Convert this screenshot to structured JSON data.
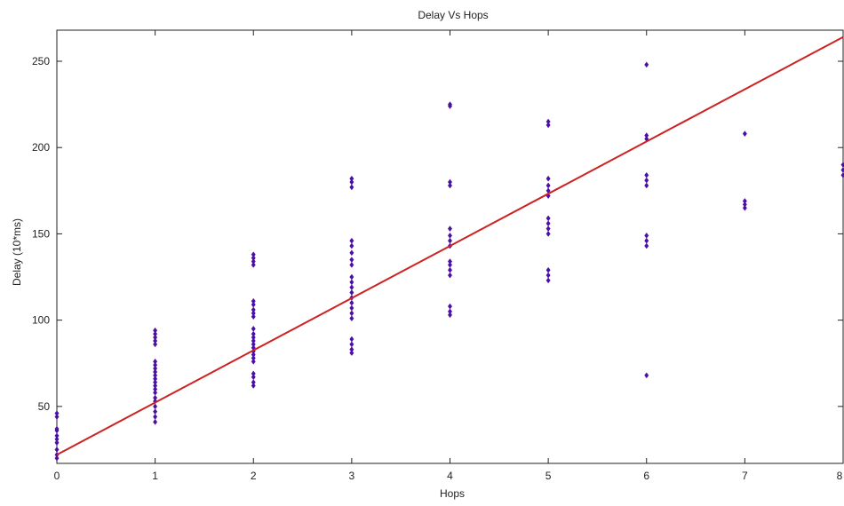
{
  "chart_data": {
    "type": "scatter",
    "title": "Delay Vs Hops",
    "xlabel": "Hops",
    "ylabel": "Delay  (10*ms)",
    "xlim": [
      0,
      8
    ],
    "ylim": [
      17,
      268
    ],
    "xticks": [
      0,
      1,
      2,
      3,
      4,
      5,
      6,
      7,
      8
    ],
    "yticks": [
      50,
      100,
      150,
      200,
      250
    ],
    "grid": false,
    "colors": {
      "points": "#4b0fa8",
      "fit": "#cc2222",
      "axes": "#222222"
    },
    "series": [
      {
        "type": "scatter",
        "points": [
          [
            0,
            20
          ],
          [
            0,
            22
          ],
          [
            0,
            25
          ],
          [
            0,
            29
          ],
          [
            0,
            31
          ],
          [
            0,
            33
          ],
          [
            0,
            36
          ],
          [
            0,
            37
          ],
          [
            0,
            44
          ],
          [
            0,
            46
          ],
          [
            1,
            41
          ],
          [
            1,
            44
          ],
          [
            1,
            47
          ],
          [
            1,
            50
          ],
          [
            1,
            53
          ],
          [
            1,
            55
          ],
          [
            1,
            58
          ],
          [
            1,
            60
          ],
          [
            1,
            62
          ],
          [
            1,
            64
          ],
          [
            1,
            66
          ],
          [
            1,
            68
          ],
          [
            1,
            70
          ],
          [
            1,
            72
          ],
          [
            1,
            74
          ],
          [
            1,
            76
          ],
          [
            1,
            86
          ],
          [
            1,
            88
          ],
          [
            1,
            90
          ],
          [
            1,
            92
          ],
          [
            1,
            94
          ],
          [
            2,
            62
          ],
          [
            2,
            64
          ],
          [
            2,
            67
          ],
          [
            2,
            69
          ],
          [
            2,
            76
          ],
          [
            2,
            78
          ],
          [
            2,
            80
          ],
          [
            2,
            82
          ],
          [
            2,
            84
          ],
          [
            2,
            86
          ],
          [
            2,
            88
          ],
          [
            2,
            90
          ],
          [
            2,
            92
          ],
          [
            2,
            95
          ],
          [
            2,
            102
          ],
          [
            2,
            104
          ],
          [
            2,
            106
          ],
          [
            2,
            109
          ],
          [
            2,
            111
          ],
          [
            2,
            132
          ],
          [
            2,
            134
          ],
          [
            2,
            136
          ],
          [
            2,
            138
          ],
          [
            3,
            81
          ],
          [
            3,
            83
          ],
          [
            3,
            86
          ],
          [
            3,
            89
          ],
          [
            3,
            101
          ],
          [
            3,
            104
          ],
          [
            3,
            107
          ],
          [
            3,
            110
          ],
          [
            3,
            113
          ],
          [
            3,
            116
          ],
          [
            3,
            119
          ],
          [
            3,
            122
          ],
          [
            3,
            125
          ],
          [
            3,
            132
          ],
          [
            3,
            135
          ],
          [
            3,
            139
          ],
          [
            3,
            143
          ],
          [
            3,
            146
          ],
          [
            3,
            177
          ],
          [
            3,
            180
          ],
          [
            3,
            182
          ],
          [
            4,
            103
          ],
          [
            4,
            105
          ],
          [
            4,
            108
          ],
          [
            4,
            126
          ],
          [
            4,
            129
          ],
          [
            4,
            132
          ],
          [
            4,
            134
          ],
          [
            4,
            143
          ],
          [
            4,
            146
          ],
          [
            4,
            149
          ],
          [
            4,
            153
          ],
          [
            4,
            178
          ],
          [
            4,
            180
          ],
          [
            4,
            224
          ],
          [
            4,
            225
          ],
          [
            5,
            123
          ],
          [
            5,
            126
          ],
          [
            5,
            129
          ],
          [
            5,
            150
          ],
          [
            5,
            153
          ],
          [
            5,
            156
          ],
          [
            5,
            159
          ],
          [
            5,
            172
          ],
          [
            5,
            175
          ],
          [
            5,
            178
          ],
          [
            5,
            182
          ],
          [
            5,
            213
          ],
          [
            5,
            215
          ],
          [
            6,
            68
          ],
          [
            6,
            143
          ],
          [
            6,
            146
          ],
          [
            6,
            149
          ],
          [
            6,
            178
          ],
          [
            6,
            181
          ],
          [
            6,
            184
          ],
          [
            6,
            205
          ],
          [
            6,
            207
          ],
          [
            6,
            248
          ],
          [
            7,
            165
          ],
          [
            7,
            167
          ],
          [
            7,
            169
          ],
          [
            7,
            208
          ],
          [
            8,
            184
          ],
          [
            8,
            187
          ],
          [
            8,
            190
          ]
        ]
      },
      {
        "type": "line",
        "name": "",
        "points": [
          [
            0,
            22
          ],
          [
            8,
            264
          ]
        ]
      }
    ]
  }
}
